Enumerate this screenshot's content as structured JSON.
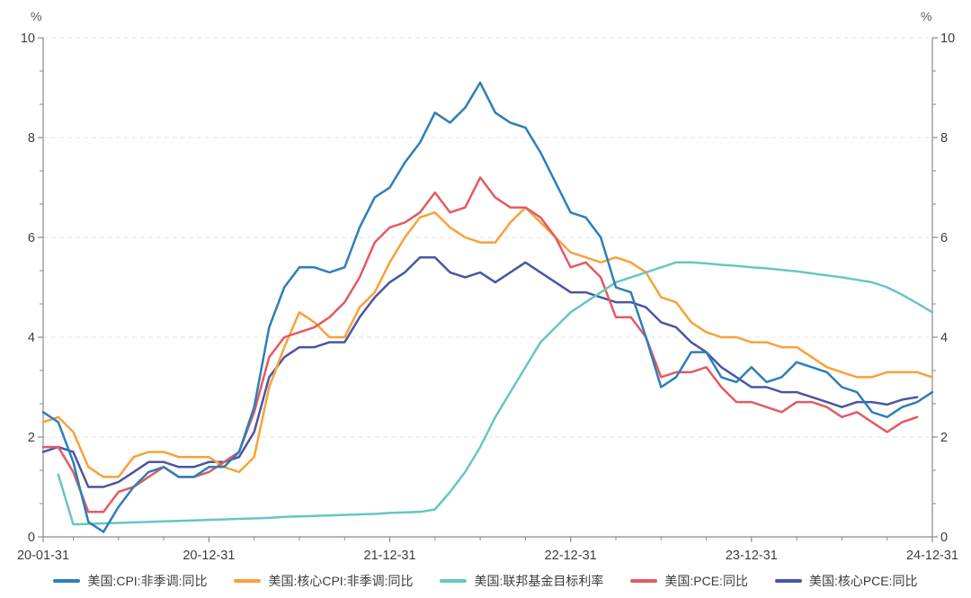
{
  "axis": {
    "unit_left": "%",
    "unit_right": "%",
    "y_major_ticks": [
      0,
      2,
      4,
      6,
      8,
      10
    ],
    "y_minor_per_interval": 2,
    "x_major_ticks": [
      {
        "label": "20-01-31",
        "month": 0
      },
      {
        "label": "20-12-31",
        "month": 11
      },
      {
        "label": "21-12-31",
        "month": 23
      },
      {
        "label": "22-12-31",
        "month": 35
      },
      {
        "label": "23-12-31",
        "month": 47
      },
      {
        "label": "24-12-31",
        "month": 59
      }
    ],
    "x_minor_interval_months": 3
  },
  "colors": {
    "axis": "#8a8a8a",
    "grid": "#e4e4e4",
    "tick_label": "#3d3d3d",
    "background": "#ffffff"
  },
  "chart_data": {
    "type": "line",
    "title": "",
    "xlabel": "",
    "ylabel": "%",
    "ylim": [
      0,
      10
    ],
    "grid": "horizontal-dashed",
    "legend_position": "bottom",
    "x": [
      "2020-01",
      "2020-02",
      "2020-03",
      "2020-04",
      "2020-05",
      "2020-06",
      "2020-07",
      "2020-08",
      "2020-09",
      "2020-10",
      "2020-11",
      "2020-12",
      "2021-01",
      "2021-02",
      "2021-03",
      "2021-04",
      "2021-05",
      "2021-06",
      "2021-07",
      "2021-08",
      "2021-09",
      "2021-10",
      "2021-11",
      "2021-12",
      "2022-01",
      "2022-02",
      "2022-03",
      "2022-04",
      "2022-05",
      "2022-06",
      "2022-07",
      "2022-08",
      "2022-09",
      "2022-10",
      "2022-11",
      "2022-12",
      "2023-01",
      "2023-02",
      "2023-03",
      "2023-04",
      "2023-05",
      "2023-06",
      "2023-07",
      "2023-08",
      "2023-09",
      "2023-10",
      "2023-11",
      "2023-12",
      "2024-01",
      "2024-02",
      "2024-03",
      "2024-04",
      "2024-05",
      "2024-06",
      "2024-07",
      "2024-08",
      "2024-09",
      "2024-10",
      "2024-11",
      "2024-12"
    ],
    "series": [
      {
        "name": "美国:CPI:非季调:同比",
        "color": "#2e7eb8",
        "values": [
          2.5,
          2.3,
          1.5,
          0.3,
          0.1,
          0.6,
          1.0,
          1.3,
          1.4,
          1.2,
          1.2,
          1.4,
          1.4,
          1.7,
          2.6,
          4.2,
          5.0,
          5.4,
          5.4,
          5.3,
          5.4,
          6.2,
          6.8,
          7.0,
          7.5,
          7.9,
          8.5,
          8.3,
          8.6,
          9.1,
          8.5,
          8.3,
          8.2,
          7.7,
          7.1,
          6.5,
          6.4,
          6.0,
          5.0,
          4.9,
          4.0,
          3.0,
          3.2,
          3.7,
          3.7,
          3.2,
          3.1,
          3.4,
          3.1,
          3.2,
          3.5,
          3.4,
          3.3,
          3.0,
          2.9,
          2.5,
          2.4,
          2.6,
          2.7,
          2.9
        ]
      },
      {
        "name": "美国:核心CPI:非季调:同比",
        "color": "#f9a13a",
        "values": [
          2.3,
          2.4,
          2.1,
          1.4,
          1.2,
          1.2,
          1.6,
          1.7,
          1.7,
          1.6,
          1.6,
          1.6,
          1.4,
          1.3,
          1.6,
          3.0,
          3.8,
          4.5,
          4.3,
          4.0,
          4.0,
          4.6,
          4.9,
          5.5,
          6.0,
          6.4,
          6.5,
          6.2,
          6.0,
          5.9,
          5.9,
          6.3,
          6.6,
          6.3,
          6.0,
          5.7,
          5.6,
          5.5,
          5.6,
          5.5,
          5.3,
          4.8,
          4.7,
          4.3,
          4.1,
          4.0,
          4.0,
          3.9,
          3.9,
          3.8,
          3.8,
          3.6,
          3.4,
          3.3,
          3.2,
          3.2,
          3.3,
          3.3,
          3.3,
          3.2
        ]
      },
      {
        "name": "美国:联邦基金目标利率",
        "color": "#67c6c1",
        "values": [
          null,
          1.25,
          0.25,
          0.26,
          0.27,
          0.28,
          0.29,
          0.3,
          0.31,
          0.32,
          0.33,
          0.34,
          0.35,
          0.36,
          0.37,
          0.38,
          0.4,
          0.41,
          0.42,
          0.43,
          0.44,
          0.45,
          0.46,
          0.48,
          0.49,
          0.5,
          0.55,
          0.9,
          1.3,
          1.8,
          2.4,
          2.9,
          3.4,
          3.9,
          4.2,
          4.5,
          4.7,
          4.9,
          5.1,
          5.2,
          5.3,
          5.4,
          5.5,
          5.5,
          5.48,
          5.45,
          5.43,
          5.4,
          5.38,
          5.35,
          5.32,
          5.28,
          5.24,
          5.2,
          5.15,
          5.1,
          5.0,
          4.85,
          4.68,
          4.5
        ]
      },
      {
        "name": "美国:PCE:同比",
        "color": "#e25b60",
        "values": [
          1.8,
          1.8,
          1.3,
          0.5,
          0.5,
          0.9,
          1.0,
          1.2,
          1.4,
          1.2,
          1.2,
          1.3,
          1.5,
          1.7,
          2.5,
          3.6,
          4.0,
          4.1,
          4.2,
          4.4,
          4.7,
          5.2,
          5.9,
          6.2,
          6.3,
          6.5,
          6.9,
          6.5,
          6.6,
          7.2,
          6.8,
          6.6,
          6.6,
          6.4,
          6.0,
          5.4,
          5.5,
          5.2,
          4.4,
          4.4,
          4.0,
          3.2,
          3.3,
          3.3,
          3.4,
          3.0,
          2.7,
          2.7,
          2.6,
          2.5,
          2.7,
          2.7,
          2.6,
          2.4,
          2.5,
          2.3,
          2.1,
          2.3,
          2.4,
          null
        ]
      },
      {
        "name": "美国:核心PCE:同比",
        "color": "#4956a3",
        "values": [
          1.7,
          1.8,
          1.7,
          1.0,
          1.0,
          1.1,
          1.3,
          1.5,
          1.5,
          1.4,
          1.4,
          1.5,
          1.5,
          1.6,
          2.1,
          3.2,
          3.6,
          3.8,
          3.8,
          3.9,
          3.9,
          4.4,
          4.8,
          5.1,
          5.3,
          5.6,
          5.6,
          5.3,
          5.2,
          5.3,
          5.1,
          5.3,
          5.5,
          5.3,
          5.1,
          4.9,
          4.9,
          4.8,
          4.7,
          4.7,
          4.6,
          4.3,
          4.2,
          3.9,
          3.7,
          3.4,
          3.2,
          3.0,
          3.0,
          2.9,
          2.9,
          2.8,
          2.7,
          2.6,
          2.7,
          2.7,
          2.65,
          2.75,
          2.8,
          null
        ]
      }
    ]
  },
  "legend": {
    "items": [
      {
        "label": "美国:CPI:非季调:同比",
        "color": "#2e7eb8"
      },
      {
        "label": "美国:核心CPI:非季调:同比",
        "color": "#f9a13a"
      },
      {
        "label": "美国:联邦基金目标利率",
        "color": "#67c6c1"
      },
      {
        "label": "美国:PCE:同比",
        "color": "#e25b60"
      },
      {
        "label": "美国:核心PCE:同比",
        "color": "#4956a3"
      }
    ]
  }
}
